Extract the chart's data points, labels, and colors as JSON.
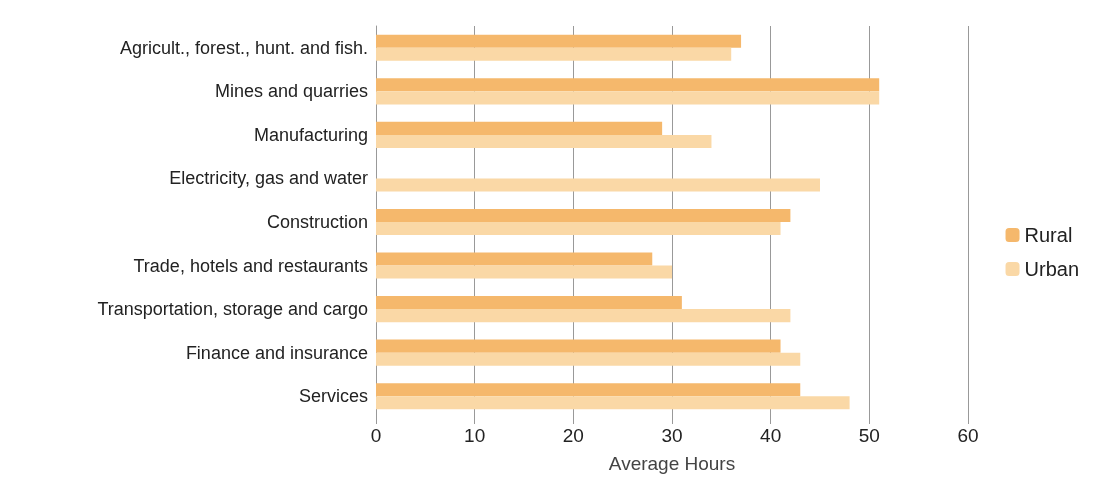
{
  "chart_data": {
    "type": "bar",
    "orientation": "horizontal",
    "xlabel": "Average Hours",
    "categories": [
      "Agricult., forest., hunt. and fish.",
      "Mines and quarries",
      "Manufacturing",
      "Electricity, gas and water",
      "Construction",
      "Trade, hotels and restaurants",
      "Transportation, storage and cargo",
      "Finance and insurance",
      "Services"
    ],
    "series": [
      {
        "name": "Rural",
        "color": "#f5b86c",
        "values": [
          37,
          51,
          29,
          null,
          42,
          28,
          31,
          41,
          43
        ]
      },
      {
        "name": "Urban",
        "color": "#fad8a6",
        "values": [
          36,
          51,
          34,
          45,
          41,
          30,
          42,
          43,
          48
        ]
      }
    ],
    "xlim": [
      0,
      60
    ],
    "xticks": [
      0,
      10,
      20,
      30,
      40,
      50,
      60
    ],
    "grid": "x",
    "legend": "right"
  }
}
